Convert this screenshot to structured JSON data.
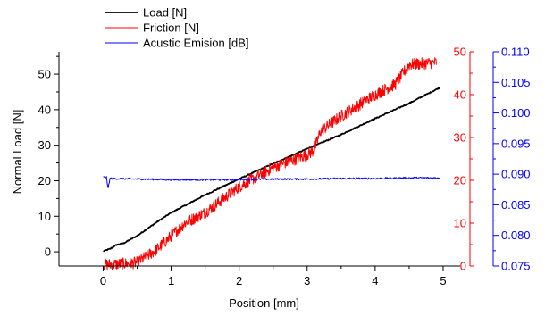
{
  "chart_data": {
    "type": "line",
    "xlabel": "Position [mm]",
    "x_ticks": [
      0,
      1,
      2,
      3,
      4,
      5
    ],
    "xlim": [
      -0.65,
      5.25
    ],
    "axes": {
      "left": {
        "label": "Normal Load [N]",
        "ylim": [
          -4.0,
          56.3
        ],
        "ticks": [
          0,
          10,
          20,
          30,
          40,
          50
        ],
        "color": "#000000"
      },
      "right1": {
        "label": "",
        "ylim": [
          0,
          50
        ],
        "ticks": [
          0,
          10,
          20,
          30,
          40,
          50
        ],
        "color": "#ff0000"
      },
      "right2": {
        "label": "",
        "ylim": [
          0.075,
          0.11
        ],
        "ticks": [
          0.075,
          0.08,
          0.085,
          0.09,
          0.095,
          0.1,
          0.105,
          0.11
        ],
        "tick_labels": [
          "0.075",
          "0.080",
          "0.085",
          "0.090",
          "0.095",
          "0.100",
          "0.105",
          "0.110"
        ],
        "color": "#0000ff"
      }
    },
    "legend": {
      "position": "top-left"
    },
    "series": [
      {
        "name": "Load [N]",
        "axis": "left",
        "color": "#000000",
        "x": [
          0.0,
          0.1,
          0.2,
          0.3,
          0.5,
          0.8,
          1.0,
          1.5,
          2.0,
          2.5,
          3.0,
          3.5,
          4.0,
          4.5,
          4.95
        ],
        "y": [
          0.2,
          0.8,
          2.0,
          2.4,
          4.5,
          8.5,
          11.0,
          16.0,
          20.5,
          24.8,
          29.0,
          33.0,
          37.5,
          41.8,
          46.2
        ]
      },
      {
        "name": "Friction [N]",
        "axis": "right1",
        "color": "#ff0000",
        "x": [
          0.0,
          0.3,
          0.5,
          0.8,
          1.0,
          1.2,
          1.5,
          2.0,
          2.5,
          3.0,
          3.1,
          3.2,
          3.5,
          4.0,
          4.3,
          4.5,
          4.9
        ],
        "y": [
          0.3,
          0.5,
          0.8,
          4.0,
          7.0,
          10.0,
          12.5,
          18.5,
          23.0,
          26.0,
          27.0,
          31.5,
          35.0,
          40.0,
          42.5,
          47.0,
          47.5
        ]
      },
      {
        "name": "Acustic Emision [dB]",
        "axis": "right2",
        "color": "#0000ff",
        "x": [
          0.0,
          0.05,
          0.07,
          0.1,
          0.5,
          1.0,
          1.5,
          2.0,
          2.5,
          3.0,
          3.5,
          4.0,
          4.5,
          4.95
        ],
        "y": [
          0.0895,
          0.0895,
          0.0875,
          0.0893,
          0.0892,
          0.0891,
          0.0891,
          0.0891,
          0.0892,
          0.0892,
          0.0893,
          0.0893,
          0.0894,
          0.0894
        ]
      }
    ]
  }
}
